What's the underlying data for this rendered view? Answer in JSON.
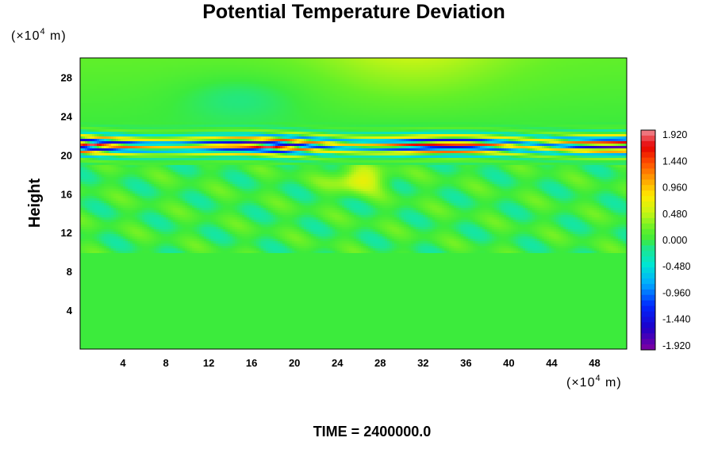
{
  "chart_data": {
    "type": "heatmap",
    "title": "Potential Temperature Deviation",
    "ylabel": "Height",
    "y_unit_prefix": "(×10",
    "y_unit_exp": "4",
    "y_unit_suffix": " m)",
    "x_unit_prefix": "(×10",
    "x_unit_exp": "4",
    "x_unit_suffix": " m)",
    "xlim": [
      0,
      51
    ],
    "ylim": [
      0,
      30
    ],
    "xticks": [
      4,
      8,
      12,
      16,
      20,
      24,
      28,
      32,
      36,
      40,
      44,
      48
    ],
    "yticks": [
      4,
      8,
      12,
      16,
      20,
      24,
      28
    ],
    "colorbar": {
      "min": -2.0,
      "max": 2.0,
      "ticks": [
        "1.920",
        "1.440",
        "0.960",
        "0.480",
        "0.000",
        "-0.480",
        "-0.960",
        "-1.440",
        "-1.920"
      ],
      "tick_values": [
        1.92,
        1.44,
        0.96,
        0.48,
        0.0,
        -0.48,
        -0.96,
        -1.44,
        -1.92
      ]
    },
    "field_description_values": {
      "background": 0.0,
      "upper_region_max": 0.5,
      "band_height_range": [
        19.5,
        22.5
      ],
      "band_amplitude": 1.92
    },
    "footer": "TIME = 2400000.0"
  }
}
